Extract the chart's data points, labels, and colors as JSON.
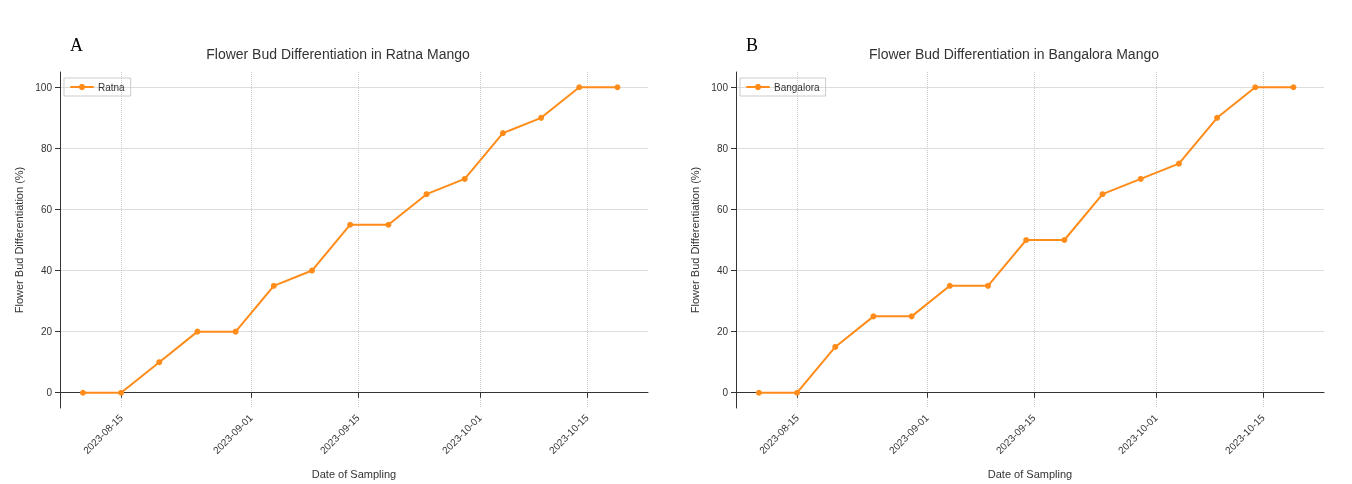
{
  "chart_data": [
    {
      "type": "line",
      "title": "Flower Bud Differentiation in Ratna Mango",
      "xlabel": "Date of Sampling",
      "ylabel": "Flower Bud Differentiation (%)",
      "annotations": [
        "A"
      ],
      "x": [
        "2023-08-10",
        "2023-08-15",
        "2023-08-20",
        "2023-08-25",
        "2023-08-30",
        "2023-09-04",
        "2023-09-09",
        "2023-09-14",
        "2023-09-19",
        "2023-09-24",
        "2023-09-29",
        "2023-10-04",
        "2023-10-09",
        "2023-10-14",
        "2023-10-19"
      ],
      "series": [
        {
          "name": "Ratna",
          "color": "#ff8c1a",
          "values": [
            0,
            0,
            10,
            20,
            20,
            35,
            40,
            55,
            55,
            65,
            70,
            85,
            90,
            100,
            100
          ]
        }
      ],
      "xlim": [
        "2023-08-07",
        "2023-10-23"
      ],
      "xticks": [
        "2023-08-15",
        "2023-09-01",
        "2023-09-15",
        "2023-10-01",
        "2023-10-15"
      ],
      "ylim": [
        -5,
        105
      ],
      "yticks": [
        0,
        20,
        40,
        60,
        80,
        100
      ],
      "grid": true,
      "legend": "top left",
      "marker": "circle",
      "line_style": "solid"
    },
    {
      "type": "line",
      "title": "Flower Bud Differentiation in Bangalora Mango",
      "xlabel": "Date of Sampling",
      "ylabel": "Flower Bud Differentiation (%)",
      "annotations": [
        "B"
      ],
      "x": [
        "2023-08-10",
        "2023-08-15",
        "2023-08-20",
        "2023-08-25",
        "2023-08-30",
        "2023-09-04",
        "2023-09-09",
        "2023-09-14",
        "2023-09-19",
        "2023-09-24",
        "2023-09-29",
        "2023-10-04",
        "2023-10-09",
        "2023-10-14",
        "2023-10-19"
      ],
      "series": [
        {
          "name": "Bangalora",
          "color": "#ff8c1a",
          "values": [
            0,
            0,
            15,
            25,
            25,
            35,
            35,
            50,
            50,
            65,
            70,
            75,
            90,
            100,
            100
          ]
        }
      ],
      "xlim": [
        "2023-08-07",
        "2023-10-23"
      ],
      "xticks": [
        "2023-08-15",
        "2023-09-01",
        "2023-09-15",
        "2023-10-01",
        "2023-10-15"
      ],
      "ylim": [
        -5,
        105
      ],
      "yticks": [
        0,
        20,
        40,
        60,
        80,
        100
      ],
      "grid": true,
      "legend": "top left",
      "marker": "circle",
      "line_style": "solid"
    }
  ]
}
